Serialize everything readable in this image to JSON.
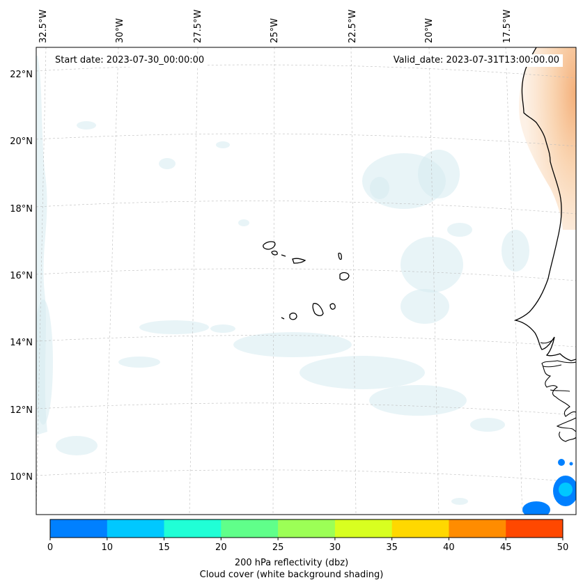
{
  "map": {
    "start_label": "Start date: 2023-07-30_00:00:00",
    "valid_label": "Valid_date: 2023-07-31T13:00:00.00",
    "lon_labels": [
      "32.5°W",
      "30°W",
      "27.5°W",
      "25°W",
      "22.5°W",
      "20°W",
      "17.5°W"
    ],
    "lat_labels": [
      "22°N",
      "20°N",
      "18°N",
      "16°N",
      "14°N",
      "12°N",
      "10°N"
    ],
    "colorbar": {
      "title_line1": "200 hPa reflectivity (dbz)",
      "title_line2": "Cloud cover (white background shading)",
      "ticks": [
        "0",
        "10",
        "15",
        "20",
        "25",
        "30",
        "35",
        "40",
        "45",
        "50"
      ],
      "colors": [
        "#0080ff",
        "#00c8ff",
        "#20ffd6",
        "#60ff8a",
        "#9cff56",
        "#d8ff20",
        "#ffd800",
        "#ff8c00",
        "#ff4800"
      ]
    }
  }
}
